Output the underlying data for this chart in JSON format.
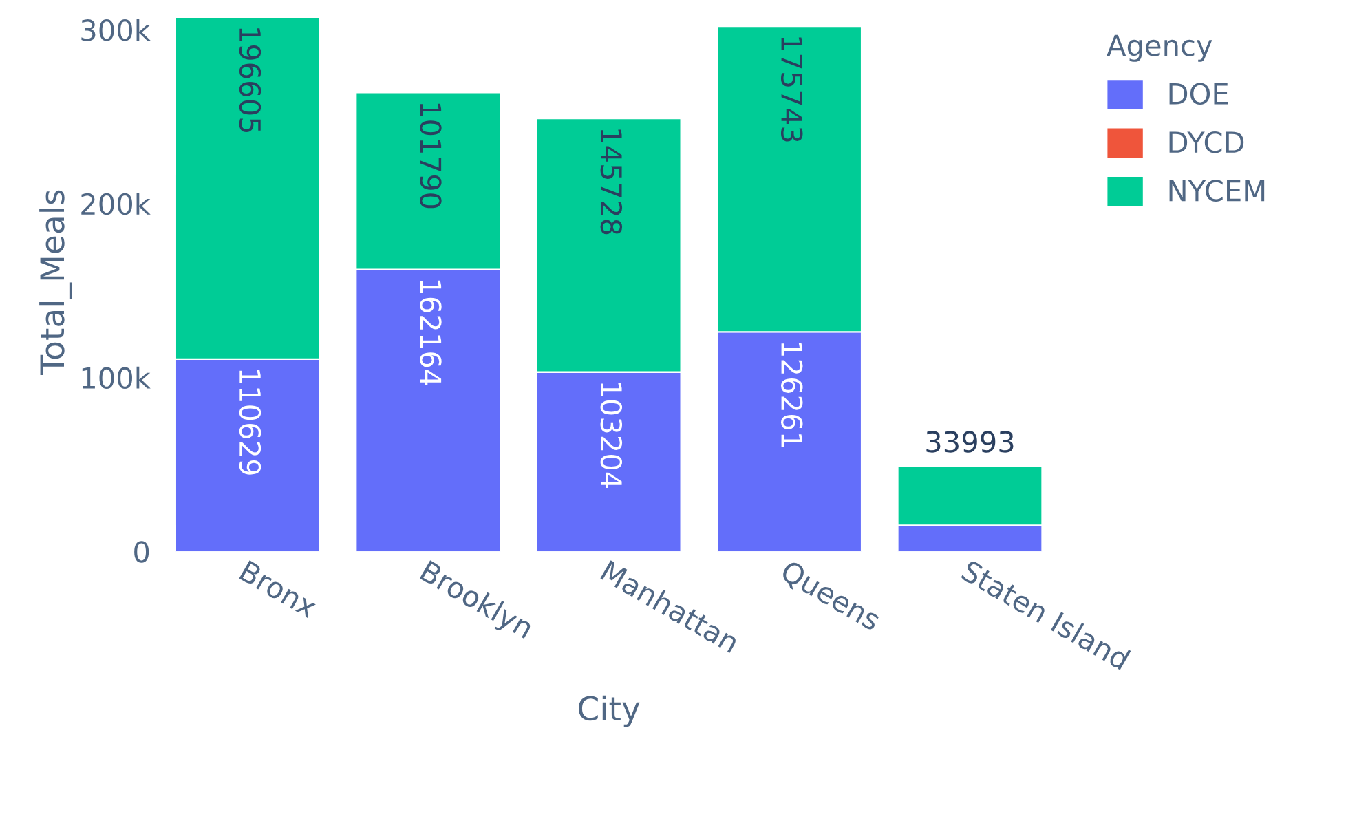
{
  "chart_data": {
    "type": "bar",
    "stacked": true,
    "xlabel": "City",
    "ylabel": "Total_Meals",
    "legend_title": "Agency",
    "legend": "top right",
    "categories": [
      "Bronx",
      "Brooklyn",
      "Manhattan",
      "Queens",
      "Staten Island"
    ],
    "series": [
      {
        "name": "DOE",
        "color": "#636efa",
        "values": [
          110629,
          162164,
          103204,
          126261,
          15000
        ],
        "value_labels": [
          "110629",
          "162164",
          "103204",
          "126261",
          null
        ]
      },
      {
        "name": "DYCD",
        "color": "#ef553b",
        "values": [
          null,
          null,
          null,
          null,
          null
        ]
      },
      {
        "name": "NYCEM",
        "color": "#00cc96",
        "values": [
          196605,
          101790,
          145728,
          175743,
          33993
        ],
        "value_labels": [
          "196605",
          "101790",
          "145728",
          "175743",
          "33993"
        ]
      }
    ],
    "ylim": [
      0,
      310000
    ],
    "yticks": [
      {
        "value": 0,
        "label": "0"
      },
      {
        "value": 100000,
        "label": "100k"
      },
      {
        "value": 200000,
        "label": "200k"
      },
      {
        "value": 300000,
        "label": "300k"
      }
    ],
    "grid": false
  }
}
